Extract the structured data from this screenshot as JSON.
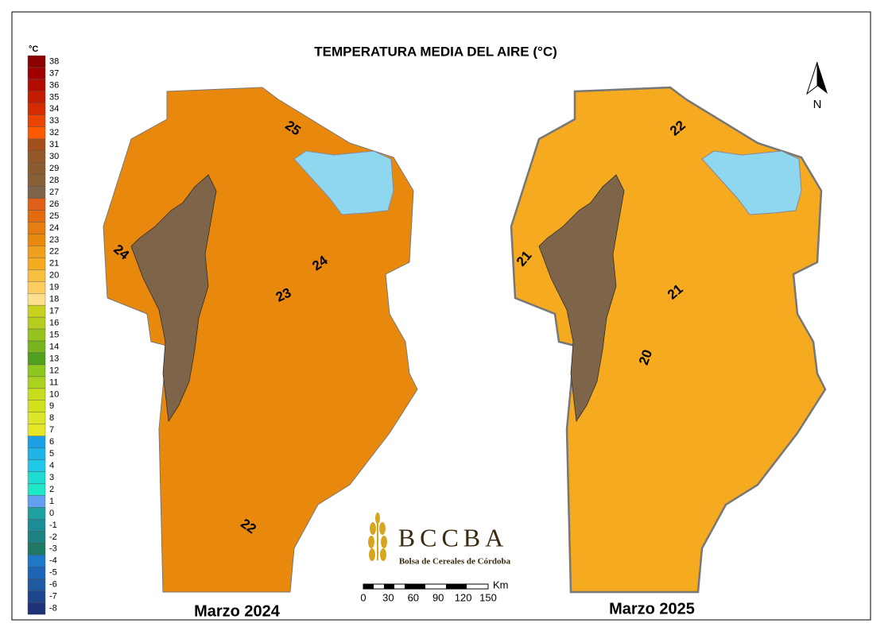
{
  "title": "TEMPERATURA MEDIA DEL AIRE (°C)",
  "legend": {
    "unit": "°C",
    "items": [
      {
        "label": 38,
        "color": "#8b0000"
      },
      {
        "label": 37,
        "color": "#a00000"
      },
      {
        "label": 36,
        "color": "#b40c00"
      },
      {
        "label": 35,
        "color": "#c41c00"
      },
      {
        "label": 34,
        "color": "#d42c00"
      },
      {
        "label": 33,
        "color": "#e84400"
      },
      {
        "label": 32,
        "color": "#ff5a00"
      },
      {
        "label": 31,
        "color": "#a24f1c"
      },
      {
        "label": 30,
        "color": "#955828"
      },
      {
        "label": 29,
        "color": "#8c5c30"
      },
      {
        "label": 28,
        "color": "#876038"
      },
      {
        "label": 27,
        "color": "#7e6448"
      },
      {
        "label": 26,
        "color": "#e0601a"
      },
      {
        "label": 25,
        "color": "#e46a10"
      },
      {
        "label": 24,
        "color": "#e67d10"
      },
      {
        "label": 23,
        "color": "#e8890e"
      },
      {
        "label": 22,
        "color": "#f0a01e"
      },
      {
        "label": 21,
        "color": "#f5aa20"
      },
      {
        "label": 20,
        "color": "#f8c040"
      },
      {
        "label": 19,
        "color": "#fbcc60"
      },
      {
        "label": 18,
        "color": "#fde08c"
      },
      {
        "label": 17,
        "color": "#c8d21e"
      },
      {
        "label": 16,
        "color": "#b4cd1e"
      },
      {
        "label": 15,
        "color": "#96c31e"
      },
      {
        "label": 14,
        "color": "#78b41e"
      },
      {
        "label": 13,
        "color": "#50a01e"
      },
      {
        "label": 12,
        "color": "#8cc81e"
      },
      {
        "label": 11,
        "color": "#aad21e"
      },
      {
        "label": 10,
        "color": "#c8dc1e"
      },
      {
        "label": 9,
        "color": "#d2e11e"
      },
      {
        "label": 8,
        "color": "#dce628"
      },
      {
        "label": 7,
        "color": "#e6e628"
      },
      {
        "label": 6,
        "color": "#1ea0e6"
      },
      {
        "label": 5,
        "color": "#1eb4e6"
      },
      {
        "label": 4,
        "color": "#1ec8e6"
      },
      {
        "label": 3,
        "color": "#1edcd2"
      },
      {
        "label": 2,
        "color": "#1ee6c8"
      },
      {
        "label": 1,
        "color": "#64a0f0"
      },
      {
        "label": 0,
        "color": "#1ea0a0"
      },
      {
        "label": -1,
        "color": "#1e8c96"
      },
      {
        "label": -2,
        "color": "#1e8282"
      },
      {
        "label": -3,
        "color": "#1e7864"
      },
      {
        "label": -4,
        "color": "#1e78c8"
      },
      {
        "label": -5,
        "color": "#1e64b4"
      },
      {
        "label": -6,
        "color": "#1e5aa0"
      },
      {
        "label": -7,
        "color": "#1e468c"
      },
      {
        "label": -8,
        "color": "#1e3278"
      }
    ]
  },
  "maps": [
    {
      "caption": "Marzo 2024",
      "labels": [
        25,
        24,
        24,
        23,
        22
      ]
    },
    {
      "caption": "Marzo 2025",
      "labels": [
        22,
        21,
        21,
        20
      ]
    }
  ],
  "north": "N",
  "logo": {
    "name": "BCCBA",
    "subtitle": "Bolsa de Cereales de Córdoba"
  },
  "scale": {
    "unit": "Km",
    "ticks": [
      0,
      30,
      60,
      90,
      120,
      150
    ]
  }
}
